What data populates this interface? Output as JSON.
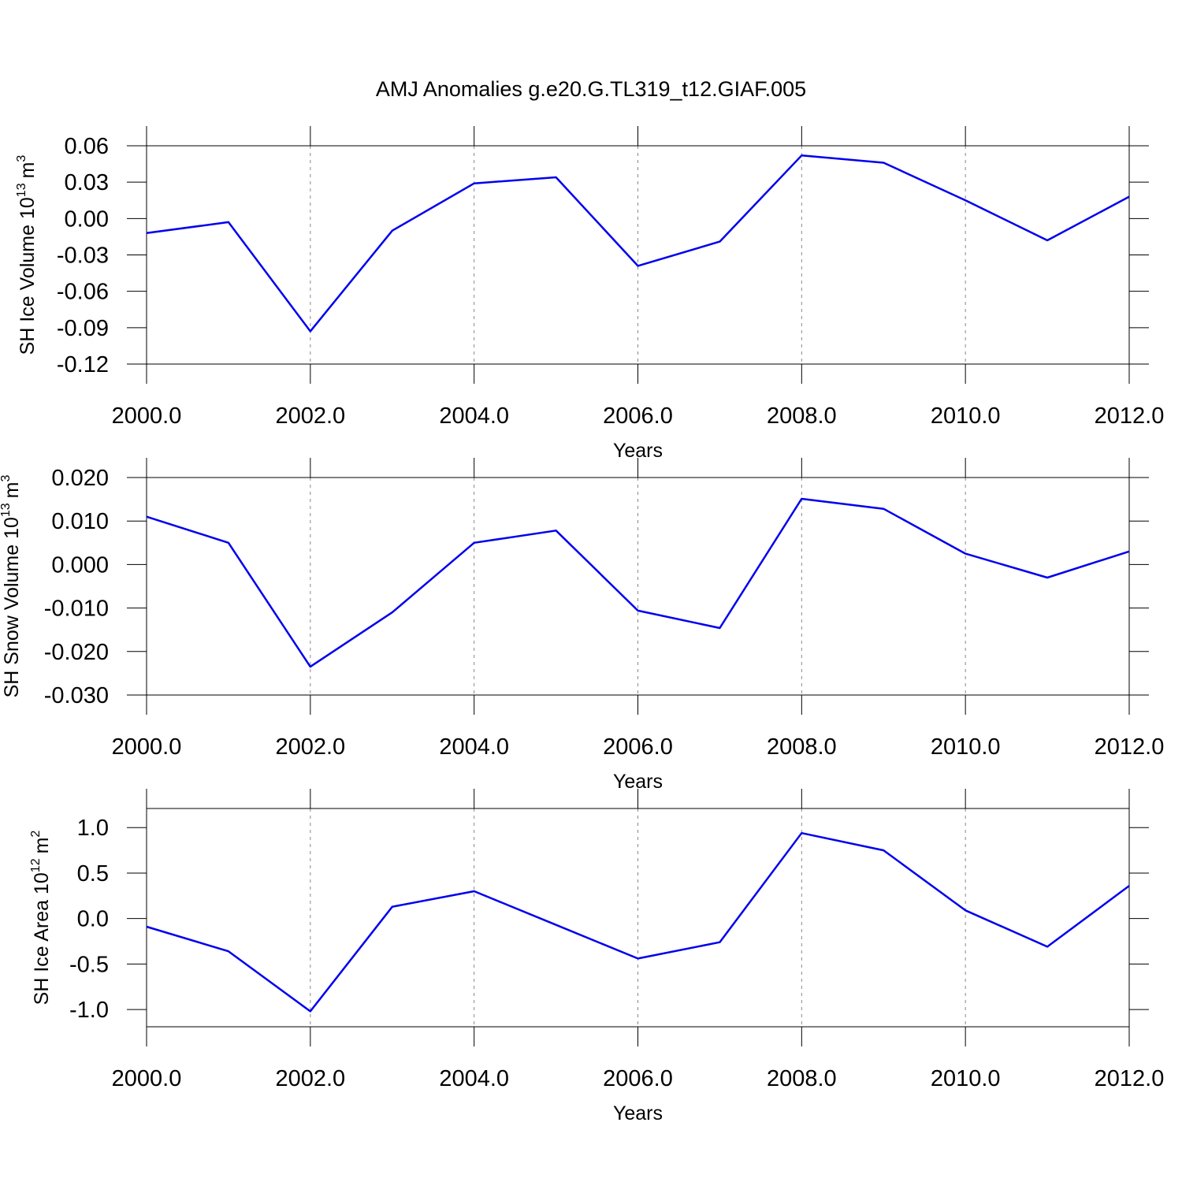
{
  "title": "AMJ Anomalies g.e20.G.TL319_t12.GIAF.005",
  "chart_data": [
    {
      "type": "line",
      "ylabel": {
        "text": "SH Ice Volume 10",
        "power": "13",
        "unit": "m",
        "unit_power": "3"
      },
      "xlabel": "Years",
      "x": [
        2000,
        2001,
        2002,
        2003,
        2004,
        2005,
        2006,
        2007,
        2008,
        2009,
        2010,
        2011,
        2012
      ],
      "values": [
        -0.012,
        -0.003,
        -0.093,
        -0.01,
        0.029,
        0.034,
        -0.039,
        -0.019,
        0.052,
        0.046,
        0.015,
        -0.018,
        0.018
      ],
      "color": "#0000ee",
      "xlim": [
        2000,
        2012
      ],
      "xticks": [
        {
          "value": 2000,
          "label": "2000.0"
        },
        {
          "value": 2002,
          "label": "2002.0"
        },
        {
          "value": 2004,
          "label": "2004.0"
        },
        {
          "value": 2006,
          "label": "2006.0"
        },
        {
          "value": 2008,
          "label": "2008.0"
        },
        {
          "value": 2010,
          "label": "2010.0"
        },
        {
          "value": 2012,
          "label": "2012.0"
        }
      ],
      "ylim": [
        -0.12,
        0.06
      ],
      "yticks": [
        -0.12,
        -0.09,
        -0.06,
        -0.03,
        {
          "value": 0,
          "label": "0.00"
        },
        0.03,
        0.06
      ],
      "grid": "x"
    },
    {
      "type": "line",
      "ylabel": {
        "text": "SH Snow Volume 10",
        "power": "13",
        "unit": "m",
        "unit_power": "3"
      },
      "xlabel": "Years",
      "x": [
        2000,
        2001,
        2002,
        2003,
        2004,
        2005,
        2006,
        2007,
        2008,
        2009,
        2010,
        2011,
        2012
      ],
      "values": [
        0.011,
        0.005,
        -0.0235,
        -0.011,
        0.005,
        0.0078,
        -0.0106,
        -0.0146,
        0.0151,
        0.0128,
        0.0025,
        -0.003,
        0.003
      ],
      "color": "#0000ee",
      "xlim": [
        2000,
        2012
      ],
      "xticks": [
        {
          "value": 2000,
          "label": "2000.0"
        },
        {
          "value": 2002,
          "label": "2002.0"
        },
        {
          "value": 2004,
          "label": "2004.0"
        },
        {
          "value": 2006,
          "label": "2006.0"
        },
        {
          "value": 2008,
          "label": "2008.0"
        },
        {
          "value": 2010,
          "label": "2010.0"
        },
        {
          "value": 2012,
          "label": "2012.0"
        }
      ],
      "ylim": [
        -0.03,
        0.02
      ],
      "yticks": [
        {
          "value": -0.03,
          "label": "-0.030"
        },
        {
          "value": -0.02,
          "label": "-0.020"
        },
        {
          "value": -0.01,
          "label": "-0.010"
        },
        {
          "value": 0,
          "label": "0.000"
        },
        {
          "value": 0.01,
          "label": "0.010"
        },
        {
          "value": 0.02,
          "label": "0.020"
        }
      ],
      "grid": "x"
    },
    {
      "type": "line",
      "ylabel": {
        "text": "SH Ice Area 10",
        "power": "12",
        "unit": "m",
        "unit_power": "2"
      },
      "xlabel": "Years",
      "x": [
        2000,
        2001,
        2002,
        2003,
        2004,
        2005,
        2006,
        2007,
        2008,
        2009,
        2010,
        2011,
        2012
      ],
      "values": [
        -0.09,
        -0.36,
        -1.02,
        0.13,
        0.3,
        -0.07,
        -0.44,
        -0.26,
        0.94,
        0.75,
        0.09,
        -0.31,
        0.36
      ],
      "color": "#0000ee",
      "xlim": [
        2000,
        2012
      ],
      "xticks": [
        {
          "value": 2000,
          "label": "2000.0"
        },
        {
          "value": 2002,
          "label": "2002.0"
        },
        {
          "value": 2004,
          "label": "2004.0"
        },
        {
          "value": 2006,
          "label": "2006.0"
        },
        {
          "value": 2008,
          "label": "2008.0"
        },
        {
          "value": 2010,
          "label": "2010.0"
        },
        {
          "value": 2012,
          "label": "2012.0"
        }
      ],
      "ylim": [
        -1.19,
        1.21
      ],
      "yticks": [
        {
          "value": -1,
          "label": "-1.0"
        },
        -0.5,
        {
          "value": 0,
          "label": "0.0"
        },
        0.5,
        {
          "value": 1,
          "label": "1.0"
        }
      ],
      "grid": "x"
    }
  ]
}
